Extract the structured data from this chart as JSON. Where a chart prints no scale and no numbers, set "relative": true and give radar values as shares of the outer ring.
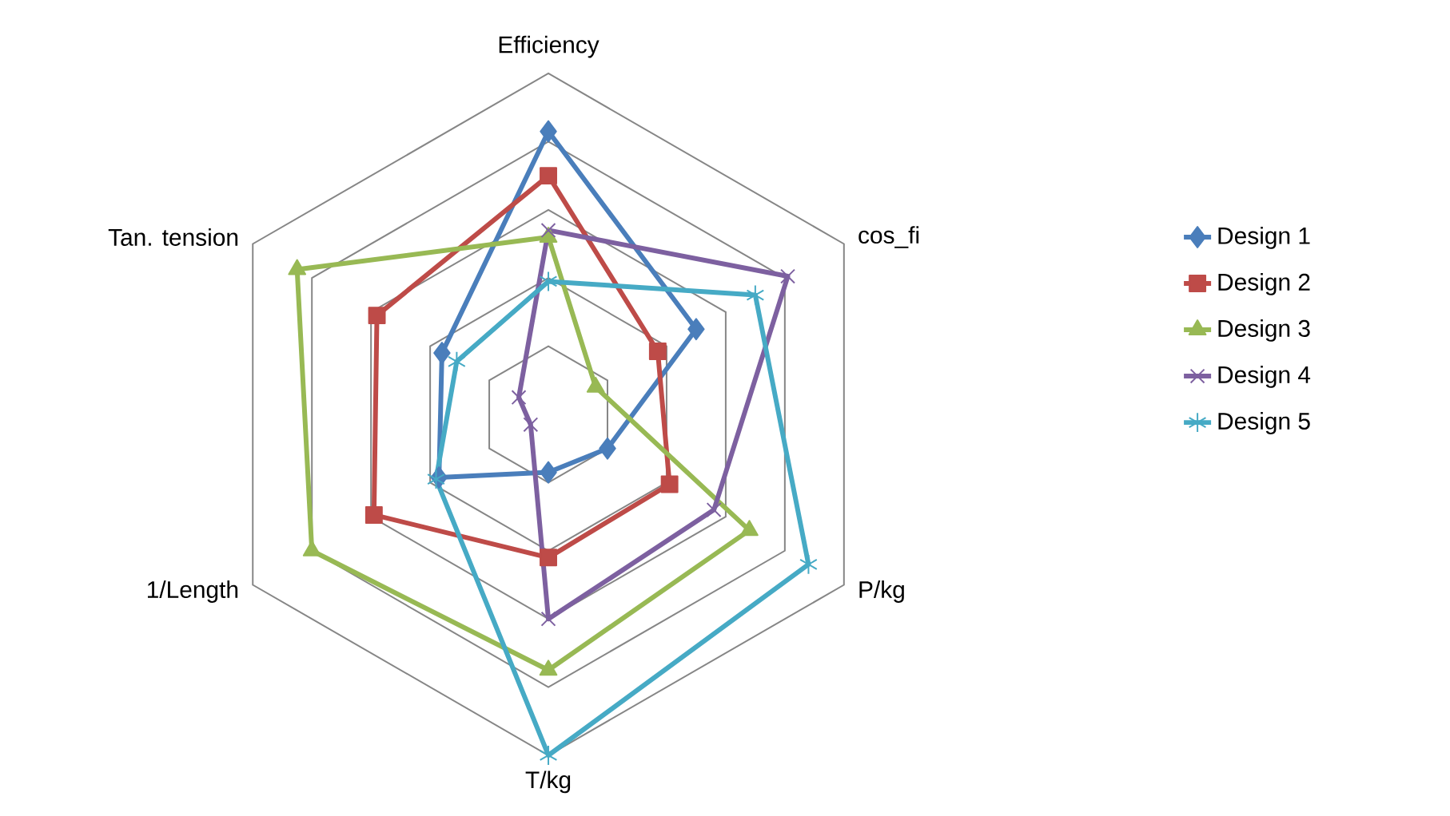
{
  "chart_data": {
    "type": "radar",
    "relative": true,
    "grid": true,
    "legend": "right",
    "categories": [
      "Efficiency",
      "cos_fi",
      "P/kg",
      "T/kg",
      "1/Length",
      "Tan. tension"
    ],
    "series": [
      {
        "name": "Design 1",
        "color": "#4a7ebb",
        "marker": "diamond",
        "values": [
          0.83,
          0.5,
          0.2,
          0.17,
          0.37,
          0.36
        ]
      },
      {
        "name": "Design 2",
        "color": "#be4b48",
        "marker": "square",
        "values": [
          0.7,
          0.37,
          0.41,
          0.42,
          0.59,
          0.58
        ]
      },
      {
        "name": "Design 3",
        "color": "#98b954",
        "marker": "triangle",
        "values": [
          0.52,
          0.16,
          0.68,
          0.75,
          0.8,
          0.85
        ]
      },
      {
        "name": "Design 4",
        "color": "#7d60a0",
        "marker": "cross",
        "values": [
          0.54,
          0.81,
          0.56,
          0.6,
          0.06,
          0.1
        ]
      },
      {
        "name": "Design 5",
        "color": "#46aac5",
        "marker": "star",
        "values": [
          0.39,
          0.7,
          0.88,
          1.0,
          0.38,
          0.31
        ]
      }
    ]
  }
}
